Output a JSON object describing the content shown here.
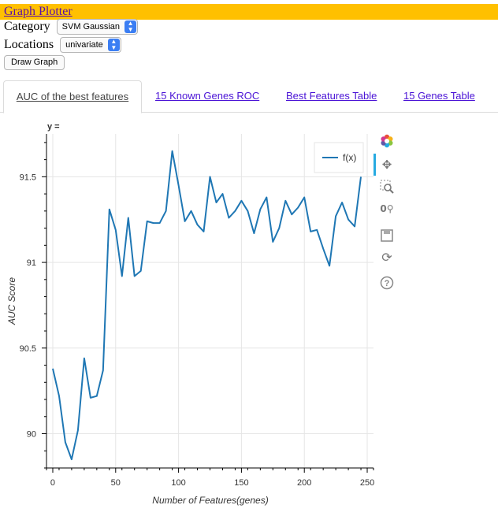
{
  "header": {
    "title": "Graph Plotter"
  },
  "controls": {
    "category_label": "Category",
    "category_value": "SVM Gaussian",
    "locations_label": "Locations",
    "locations_value": "univariate",
    "draw_button": "Draw Graph"
  },
  "tabs": [
    {
      "label": "AUC of the best features",
      "active": true
    },
    {
      "label": "15 Known Genes ROC",
      "active": false
    },
    {
      "label": "Best Features Table",
      "active": false
    },
    {
      "label": "15 Genes Table",
      "active": false
    }
  ],
  "toolbar": {
    "icons": [
      "bokeh-logo-icon",
      "pan-icon",
      "box-zoom-icon",
      "wheel-zoom-icon",
      "save-icon",
      "reset-icon",
      "help-icon"
    ]
  },
  "chart_data": {
    "type": "line",
    "title": "y =",
    "xlabel": "Number of Features(genes)",
    "ylabel": "AUC Score",
    "xlim": [
      -5,
      255
    ],
    "ylim": [
      89.8,
      91.75
    ],
    "xticks": [
      0,
      50,
      100,
      150,
      200,
      250
    ],
    "yticks": [
      90,
      90.5,
      91,
      91.5
    ],
    "ytick_labels": [
      "90",
      "90.5",
      "91",
      "91.5"
    ],
    "grid": true,
    "legend_position": "top-right",
    "series": [
      {
        "name": "f(x)",
        "color": "#1f77b4",
        "x": [
          0,
          5,
          10,
          15,
          20,
          25,
          30,
          35,
          40,
          45,
          50,
          55,
          60,
          65,
          70,
          75,
          80,
          85,
          90,
          95,
          100,
          105,
          110,
          115,
          120,
          125,
          130,
          135,
          140,
          145,
          150,
          155,
          160,
          165,
          170,
          175,
          180,
          185,
          190,
          195,
          200,
          205,
          210,
          215,
          220,
          225,
          230,
          235,
          240,
          245
        ],
        "y": [
          90.38,
          90.22,
          89.95,
          89.85,
          90.02,
          90.44,
          90.21,
          90.22,
          90.37,
          91.31,
          91.19,
          90.92,
          91.26,
          90.92,
          90.95,
          91.24,
          91.23,
          91.23,
          91.3,
          91.65,
          91.45,
          91.24,
          91.3,
          91.22,
          91.18,
          91.5,
          91.35,
          91.4,
          91.26,
          91.3,
          91.36,
          91.3,
          91.17,
          91.31,
          91.38,
          91.12,
          91.2,
          91.36,
          91.28,
          91.32,
          91.38,
          91.18,
          91.19,
          91.08,
          90.98,
          91.27,
          91.35,
          91.25,
          91.21,
          91.5
        ]
      }
    ]
  }
}
